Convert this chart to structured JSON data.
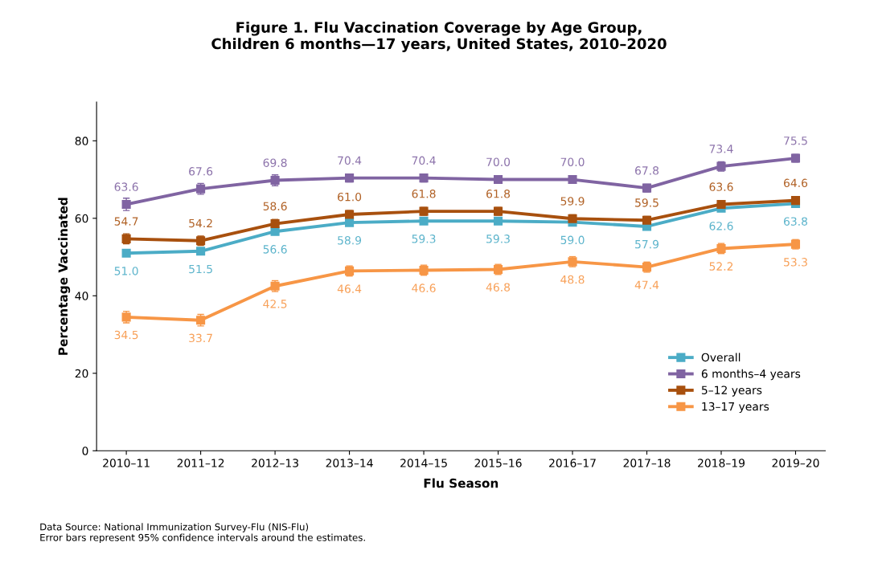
{
  "chart_data": {
    "type": "line",
    "title": "Figure 1. Flu Vaccination Coverage by Age Group,\nChildren 6 months—17 years, United States, 2010–2020",
    "xlabel": "Flu Season",
    "ylabel": "Percentage Vaccinated",
    "categories": [
      "2010–11",
      "2011–12",
      "2012–13",
      "2013–14",
      "2014–15",
      "2015–16",
      "2016–17",
      "2017–18",
      "2018–19",
      "2019–20"
    ],
    "series": [
      {
        "name": "Overall",
        "color": "#4bacc6",
        "values": [
          51.0,
          51.5,
          56.6,
          58.9,
          59.3,
          59.3,
          59.0,
          57.9,
          62.6,
          63.8
        ],
        "value_labels": [
          "51.0",
          "51.5",
          "56.6",
          "58.9",
          "59.3",
          "59.3",
          "59.0",
          "57.9",
          "62.6",
          "63.8"
        ],
        "errors": [
          0.8,
          0.8,
          0.8,
          0.7,
          0.7,
          0.7,
          0.7,
          0.7,
          0.8,
          0.8
        ]
      },
      {
        "name": "6 months–4 years",
        "color": "#8064a2",
        "values": [
          63.6,
          67.6,
          69.8,
          70.4,
          70.4,
          70.0,
          70.0,
          67.8,
          73.4,
          75.5
        ],
        "value_labels": [
          "63.6",
          "67.6",
          "69.8",
          "70.4",
          "70.4",
          "70.0",
          "70.0",
          "67.8",
          "73.4",
          "75.5"
        ],
        "errors": [
          1.6,
          1.4,
          1.4,
          1.0,
          1.0,
          1.0,
          1.0,
          1.0,
          1.2,
          1.0
        ]
      },
      {
        "name": "5–12 years",
        "color": "#a8500e",
        "values": [
          54.7,
          54.2,
          58.6,
          61.0,
          61.8,
          61.8,
          59.9,
          59.5,
          63.6,
          64.6
        ],
        "value_labels": [
          "54.7",
          "54.2",
          "58.6",
          "61.0",
          "61.8",
          "61.8",
          "59.9",
          "59.5",
          "63.6",
          "64.6"
        ],
        "errors": [
          1.3,
          1.2,
          1.1,
          1.0,
          1.0,
          1.0,
          1.0,
          1.0,
          1.0,
          1.0
        ]
      },
      {
        "name": "13–17 years",
        "color": "#f79646",
        "values": [
          34.5,
          33.7,
          42.5,
          46.4,
          46.6,
          46.8,
          48.8,
          47.4,
          52.2,
          53.3
        ],
        "value_labels": [
          "34.5",
          "33.7",
          "42.5",
          "46.4",
          "46.6",
          "46.8",
          "48.8",
          "47.4",
          "52.2",
          "53.3"
        ],
        "errors": [
          1.5,
          1.5,
          1.4,
          1.3,
          1.3,
          1.3,
          1.3,
          1.3,
          1.3,
          1.2
        ]
      }
    ],
    "ylim": [
      0,
      90
    ],
    "yticks": [
      0,
      20,
      40,
      60,
      80
    ],
    "grid": false,
    "legend": "bottom right",
    "marker": "square",
    "line_style": "solid",
    "annotations": [
      "Data Source: National Immunization Survey-Flu (NIS-Flu)\nError bars represent 95% confidence intervals around the estimates."
    ]
  }
}
